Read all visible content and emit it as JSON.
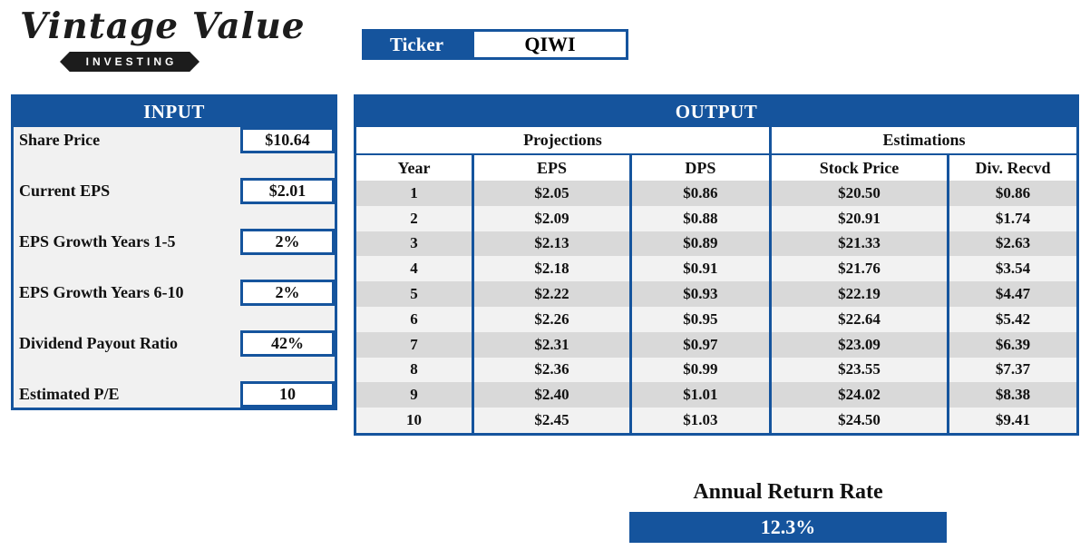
{
  "brand": {
    "script_text": "Vintage Value",
    "ribbon_text": "INVESTING"
  },
  "ticker": {
    "label": "Ticker",
    "value": "QIWI"
  },
  "input_panel": {
    "title": "INPUT",
    "fields": [
      {
        "label": "Share Price",
        "value": "$10.64"
      },
      {
        "label": "Current EPS",
        "value": "$2.01"
      },
      {
        "label": "EPS Growth Years 1-5",
        "value": "2%"
      },
      {
        "label": "EPS Growth Years 6-10",
        "value": "2%"
      },
      {
        "label": "Dividend Payout Ratio",
        "value": "42%"
      },
      {
        "label": "Estimated P/E",
        "value": "10"
      }
    ]
  },
  "output_panel": {
    "title": "OUTPUT",
    "group_headers": [
      "Projections",
      "Estimations"
    ],
    "columns": [
      "Year",
      "EPS",
      "DPS",
      "Stock Price",
      "Div. Recvd"
    ],
    "rows": [
      [
        "1",
        "$2.05",
        "$0.86",
        "$20.50",
        "$0.86"
      ],
      [
        "2",
        "$2.09",
        "$0.88",
        "$20.91",
        "$1.74"
      ],
      [
        "3",
        "$2.13",
        "$0.89",
        "$21.33",
        "$2.63"
      ],
      [
        "4",
        "$2.18",
        "$0.91",
        "$21.76",
        "$3.54"
      ],
      [
        "5",
        "$2.22",
        "$0.93",
        "$22.19",
        "$4.47"
      ],
      [
        "6",
        "$2.26",
        "$0.95",
        "$22.64",
        "$5.42"
      ],
      [
        "7",
        "$2.31",
        "$0.97",
        "$23.09",
        "$6.39"
      ],
      [
        "8",
        "$2.36",
        "$0.99",
        "$23.55",
        "$7.37"
      ],
      [
        "9",
        "$2.40",
        "$1.01",
        "$24.02",
        "$8.38"
      ],
      [
        "10",
        "$2.45",
        "$1.03",
        "$24.50",
        "$9.41"
      ]
    ]
  },
  "annual_return": {
    "label": "Annual Return Rate",
    "value": "12.3%"
  },
  "colors": {
    "primary_blue": "#15549D",
    "row_gray": "#D9D9D9",
    "row_light": "#F2F2F2",
    "panel_bg": "#F1F1F1",
    "ribbon_black": "#1C1C1C"
  }
}
